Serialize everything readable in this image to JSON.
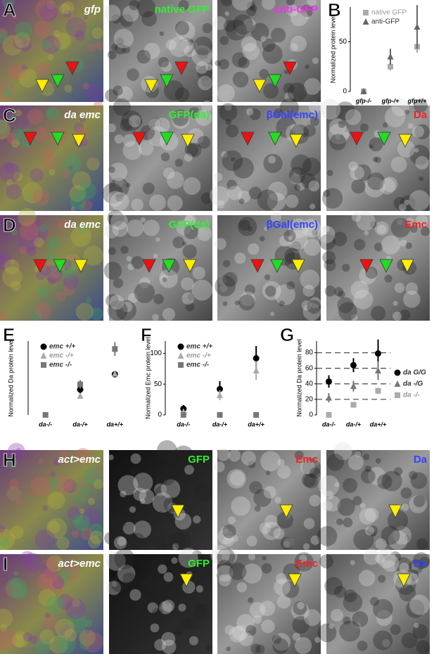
{
  "panel_letters": [
    "A",
    "B",
    "C",
    "D",
    "E",
    "F",
    "G",
    "H",
    "I"
  ],
  "image_rows": [
    {
      "labels": [
        "gfp",
        "native GFP",
        "anti-GFP"
      ],
      "colors": [
        "#ffffff",
        "#33ee33",
        "#ee33ee"
      ]
    },
    {
      "labels": [
        "da emc",
        "GFP(da)",
        "βGal(emc)",
        "Da"
      ],
      "colors": [
        "#ffffff",
        "#33ee33",
        "#3344ff",
        "#ee2222"
      ]
    },
    {
      "labels": [
        "da emc",
        "GFP(da)",
        "βGal(emc)",
        "Emc"
      ],
      "colors": [
        "#ffffff",
        "#33ee33",
        "#3344ff",
        "#ee2222"
      ]
    },
    {
      "labels": [
        "act>emc",
        "GFP",
        "Emc",
        "Da"
      ],
      "colors": [
        "#ffffff",
        "#33ee33",
        "#ee2222",
        "#3344ff"
      ]
    },
    {
      "labels": [
        "act>emc",
        "GFP",
        "Emc",
        "Da"
      ],
      "colors": [
        "#ffffff",
        "#33ee33",
        "#ee2222",
        "#3344ff"
      ]
    }
  ],
  "chart_data": [
    {
      "type": "scatter",
      "y_label": "Normalized protein level",
      "categories": [
        "gfp-/-",
        "gfp-/+",
        "gfp+/+"
      ],
      "ylim": [
        0,
        85
      ],
      "yticks": [
        0,
        50
      ],
      "legend": "upper left",
      "series": [
        {
          "name": "native GFP",
          "color": "#aaaaaa",
          "marker": "square",
          "values": [
            0,
            25,
            45
          ],
          "errors": [
            0,
            4,
            6
          ]
        },
        {
          "name": "anti-GFP",
          "color": "#666666",
          "marker": "triangle",
          "values": [
            0,
            35,
            65
          ],
          "errors": [
            3,
            8,
            22
          ]
        }
      ]
    },
    {
      "type": "scatter",
      "y_label": "Normalized Da protein level",
      "categories": [
        "da-/-",
        "da-/+",
        "da+/+"
      ],
      "ylim": [
        0,
        140
      ],
      "legend": "upper left",
      "series": [
        {
          "name": "emc +/+",
          "color": "#000000",
          "marker": "circle",
          "values": [
            null,
            48,
            77
          ],
          "errors": [
            null,
            10,
            3
          ]
        },
        {
          "name": "emc -/+",
          "color": "#aaaaaa",
          "marker": "triangle",
          "values": [
            null,
            36,
            78
          ],
          "errors": [
            null,
            5,
            3
          ]
        },
        {
          "name": "emc -/-",
          "color": "#777777",
          "marker": "square",
          "values": [
            0,
            58,
            125
          ],
          "errors": [
            3,
            8,
            13
          ]
        }
      ]
    },
    {
      "type": "scatter",
      "y_label": "Normalized Emc protein level",
      "categories": [
        "da-/-",
        "da-/+",
        "da+/+"
      ],
      "ylim": [
        0,
        120
      ],
      "yticks": [
        0,
        50,
        100
      ],
      "legend": "upper left",
      "series": [
        {
          "name": "emc +/+",
          "color": "#000000",
          "marker": "circle",
          "values": [
            10,
            42,
            92
          ],
          "errors": [
            6,
            13,
            20
          ]
        },
        {
          "name": "emc -/+",
          "color": "#aaaaaa",
          "marker": "triangle",
          "values": [
            5,
            32,
            72
          ],
          "errors": [
            4,
            8,
            15
          ]
        },
        {
          "name": "emc -/-",
          "color": "#777777",
          "marker": "square",
          "values": [
            0,
            0,
            0
          ],
          "errors": [
            0,
            0,
            0
          ]
        }
      ]
    },
    {
      "type": "scatter",
      "y_label": "Normalized Da protein level",
      "categories": [
        "da-/-",
        "da-/+",
        "da+/+"
      ],
      "ylim": [
        0,
        95
      ],
      "yticks": [
        0,
        20,
        40,
        60,
        80
      ],
      "grid": "dashed",
      "legend": "right",
      "series": [
        {
          "name": "da G/G",
          "color": "#000000",
          "marker": "circle",
          "values": [
            43,
            64,
            79
          ],
          "errors": [
            8,
            9,
            18
          ]
        },
        {
          "name": "da -/G",
          "color": "#777777",
          "marker": "triangle",
          "values": [
            22,
            37,
            57
          ],
          "errors": [
            6,
            7,
            12
          ]
        },
        {
          "name": "da -/-",
          "color": "#aaaaaa",
          "marker": "square",
          "values": [
            0,
            13,
            31
          ],
          "errors": [
            3,
            3,
            4
          ]
        }
      ]
    }
  ]
}
